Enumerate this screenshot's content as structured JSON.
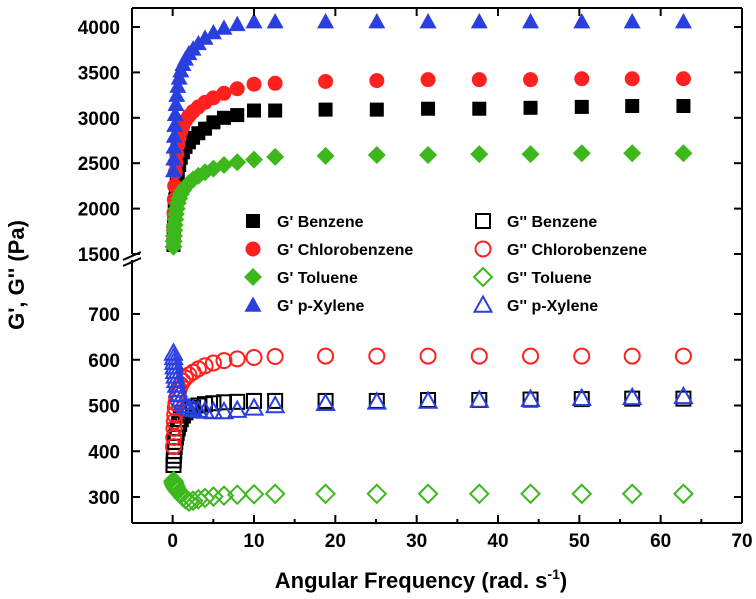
{
  "chart_data": {
    "type": "scatter",
    "title": "",
    "xlabel": "Angular Frequency (rad. s",
    "xlabel_superscript": "-1",
    "xlabel_suffix": ")",
    "ylabel": "G', G'' (Pa)",
    "xlim": [
      -5,
      70
    ],
    "x_ticks": [
      0,
      10,
      20,
      30,
      40,
      50,
      60,
      70
    ],
    "y_axis_break": true,
    "upper_panel": {
      "ylim": [
        1500,
        4150
      ],
      "y_ticks": [
        1500,
        2000,
        2500,
        3000,
        3500,
        4000
      ]
    },
    "lower_panel": {
      "ylim": [
        250,
        760
      ],
      "y_ticks": [
        300,
        400,
        500,
        600,
        700
      ]
    },
    "legend_placement": "center",
    "series": [
      {
        "name": "G' Benzene",
        "panel": "upper",
        "marker": "square",
        "filled": true,
        "color": "#000000",
        "x": [
          0.1,
          0.13,
          0.16,
          0.2,
          0.25,
          0.32,
          0.4,
          0.5,
          0.63,
          0.8,
          1.0,
          1.26,
          1.58,
          2.0,
          2.51,
          3.16,
          3.98,
          5.01,
          6.31,
          7.94,
          10.0,
          12.6,
          18.8,
          25.1,
          31.4,
          37.7,
          44.0,
          50.3,
          56.5,
          62.8
        ],
        "y": [
          1600,
          1700,
          1800,
          1900,
          2000,
          2100,
          2200,
          2300,
          2400,
          2480,
          2560,
          2620,
          2680,
          2730,
          2780,
          2830,
          2880,
          2950,
          3000,
          3030,
          3080,
          3080,
          3090,
          3090,
          3100,
          3100,
          3110,
          3120,
          3130,
          3130
        ]
      },
      {
        "name": "G' Chlorobenzene",
        "panel": "upper",
        "marker": "circle",
        "filled": true,
        "color": "#ff2020",
        "x": [
          0.1,
          0.13,
          0.16,
          0.2,
          0.25,
          0.32,
          0.4,
          0.5,
          0.63,
          0.8,
          1.0,
          1.26,
          1.58,
          2.0,
          2.51,
          3.16,
          3.98,
          5.01,
          6.31,
          7.94,
          10.0,
          12.6,
          18.8,
          25.1,
          31.4,
          37.7,
          44.0,
          50.3,
          56.5,
          62.8
        ],
        "y": [
          1650,
          1800,
          1950,
          2100,
          2250,
          2400,
          2500,
          2600,
          2700,
          2780,
          2850,
          2910,
          2970,
          3020,
          3070,
          3120,
          3170,
          3220,
          3270,
          3320,
          3370,
          3380,
          3400,
          3410,
          3420,
          3420,
          3420,
          3430,
          3430,
          3430
        ]
      },
      {
        "name": "G' Toluene",
        "panel": "upper",
        "marker": "diamond",
        "filled": true,
        "color": "#3cb81c",
        "x": [
          0.1,
          0.13,
          0.16,
          0.2,
          0.25,
          0.32,
          0.4,
          0.5,
          0.63,
          0.8,
          1.0,
          1.26,
          1.58,
          2.0,
          2.51,
          3.16,
          3.98,
          5.01,
          6.31,
          7.94,
          10.0,
          12.6,
          18.8,
          25.1,
          31.4,
          37.7,
          44.0,
          50.3,
          56.5,
          62.8
        ],
        "y": [
          1580,
          1640,
          1700,
          1760,
          1820,
          1880,
          1940,
          2000,
          2060,
          2110,
          2160,
          2200,
          2240,
          2280,
          2320,
          2360,
          2400,
          2440,
          2480,
          2510,
          2540,
          2570,
          2580,
          2590,
          2590,
          2600,
          2600,
          2610,
          2610,
          2610
        ]
      },
      {
        "name": "G' p-Xylene",
        "panel": "upper",
        "marker": "triangle",
        "filled": true,
        "color": "#2a3fe0",
        "x": [
          0.1,
          0.13,
          0.16,
          0.2,
          0.25,
          0.32,
          0.4,
          0.5,
          0.63,
          0.8,
          1.0,
          1.26,
          1.58,
          2.0,
          2.51,
          3.16,
          3.98,
          5.01,
          6.31,
          7.94,
          10.0,
          12.6,
          18.8,
          25.1,
          31.4,
          37.7,
          44.0,
          50.3,
          56.5,
          62.8
        ],
        "y": [
          2420,
          2550,
          2680,
          2800,
          2920,
          3040,
          3150,
          3250,
          3350,
          3440,
          3520,
          3590,
          3650,
          3710,
          3760,
          3820,
          3880,
          3940,
          3990,
          4030,
          4060,
          4060,
          4060,
          4060,
          4060,
          4060,
          4060,
          4060,
          4060,
          4060
        ]
      },
      {
        "name": "G'' Benzene",
        "panel": "lower",
        "marker": "square",
        "filled": false,
        "color": "#000000",
        "x": [
          0.1,
          0.13,
          0.16,
          0.2,
          0.25,
          0.32,
          0.4,
          0.5,
          0.63,
          0.8,
          1.0,
          1.26,
          1.58,
          2.0,
          2.51,
          3.16,
          3.98,
          5.01,
          6.31,
          7.94,
          10.0,
          12.6,
          18.8,
          25.1,
          31.4,
          37.7,
          44.0,
          50.3,
          56.5,
          62.8
        ],
        "y": [
          370,
          380,
          390,
          400,
          410,
          420,
          430,
          440,
          450,
          460,
          470,
          478,
          485,
          490,
          495,
          500,
          503,
          505,
          507,
          508,
          510,
          510,
          510,
          510,
          512,
          512,
          513,
          514,
          515,
          515
        ]
      },
      {
        "name": "G'' Chlorobenzene",
        "panel": "lower",
        "marker": "circle",
        "filled": false,
        "color": "#ff2020",
        "x": [
          0.1,
          0.13,
          0.16,
          0.2,
          0.25,
          0.32,
          0.4,
          0.5,
          0.63,
          0.8,
          1.0,
          1.26,
          1.58,
          2.0,
          2.51,
          3.16,
          3.98,
          5.01,
          6.31,
          7.94,
          10.0,
          12.6,
          18.8,
          25.1,
          31.4,
          37.7,
          44.0,
          50.3,
          56.5,
          62.8
        ],
        "y": [
          410,
          430,
          450,
          465,
          480,
          495,
          505,
          515,
          525,
          535,
          545,
          553,
          560,
          567,
          573,
          580,
          587,
          593,
          598,
          602,
          605,
          607,
          608,
          608,
          608,
          608,
          608,
          608,
          608,
          608
        ]
      },
      {
        "name": "G'' Toluene",
        "panel": "lower",
        "marker": "diamond",
        "filled": false,
        "color": "#3cb81c",
        "x": [
          0.1,
          0.13,
          0.16,
          0.2,
          0.25,
          0.32,
          0.4,
          0.5,
          0.63,
          0.8,
          1.0,
          1.26,
          1.58,
          2.0,
          2.51,
          3.16,
          3.98,
          5.01,
          6.31,
          7.94,
          10.0,
          12.6,
          18.8,
          25.1,
          31.4,
          37.7,
          44.0,
          50.3,
          56.5,
          62.8
        ],
        "y": [
          335,
          332,
          330,
          328,
          326,
          323,
          320,
          317,
          314,
          310,
          306,
          300,
          295,
          290,
          292,
          295,
          298,
          301,
          303,
          305,
          306,
          307,
          307,
          307,
          307,
          307,
          307,
          307,
          307,
          307
        ]
      },
      {
        "name": "G'' p-Xylene",
        "panel": "lower",
        "marker": "triangle",
        "filled": false,
        "color": "#2a3fe0",
        "x": [
          0.1,
          0.13,
          0.16,
          0.2,
          0.25,
          0.32,
          0.4,
          0.5,
          0.63,
          0.8,
          1.0,
          1.26,
          1.58,
          2.0,
          2.51,
          3.16,
          3.98,
          5.01,
          6.31,
          7.94,
          10.0,
          12.6,
          18.8,
          25.1,
          31.4,
          37.7,
          44.0,
          50.3,
          56.5,
          62.8
        ],
        "y": [
          615,
          605,
          595,
          585,
          575,
          565,
          555,
          545,
          535,
          525,
          515,
          507,
          500,
          495,
          492,
          490,
          488,
          487,
          487,
          490,
          495,
          500,
          505,
          508,
          510,
          512,
          514,
          516,
          518,
          520
        ]
      }
    ]
  }
}
